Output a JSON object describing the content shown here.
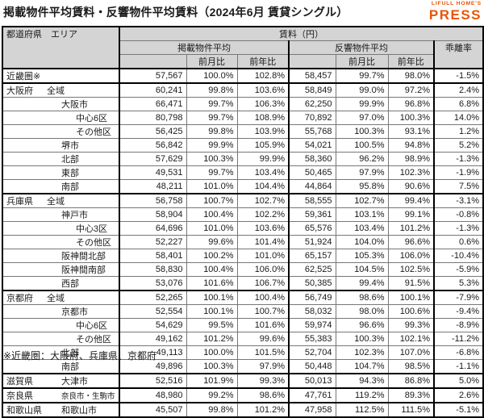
{
  "title": "掲載物件平均賃料・反響物件平均賃料（2024年6月 賃貸シングル）",
  "logo": {
    "top_text": "LIFULL HOME'S",
    "main_text": "PRESS",
    "color": "#E85504"
  },
  "header": {
    "col_prefecture_area": "都道府県　エリア",
    "rent_group": "賃料（円）",
    "listed_group": "掲載物件平均",
    "inquiry_group": "反響物件平均",
    "divergence": "乖離率",
    "mom": "前月比",
    "yoy": "前年比"
  },
  "table": {
    "rows": [
      {
        "pref": "近畿圏※",
        "area": "",
        "indent": 1,
        "section": true,
        "values": [
          "57,567",
          "100.0%",
          "102.8%",
          "58,457",
          "99.7%",
          "98.0%",
          "-1.5%"
        ]
      },
      {
        "pref": "大阪府",
        "area": "全域",
        "indent": 1,
        "section": true,
        "values": [
          "60,241",
          "99.8%",
          "103.6%",
          "58,849",
          "99.0%",
          "97.2%",
          "2.4%"
        ]
      },
      {
        "pref": "",
        "area": "大阪市",
        "indent": 2,
        "section": false,
        "values": [
          "66,471",
          "99.7%",
          "106.3%",
          "62,250",
          "99.9%",
          "96.8%",
          "6.8%"
        ]
      },
      {
        "pref": "",
        "area": "中心6区",
        "indent": 3,
        "section": false,
        "values": [
          "80,798",
          "99.7%",
          "108.9%",
          "70,892",
          "97.0%",
          "100.3%",
          "14.0%"
        ]
      },
      {
        "pref": "",
        "area": "その他区",
        "indent": 3,
        "section": false,
        "values": [
          "56,425",
          "99.8%",
          "103.9%",
          "55,768",
          "100.3%",
          "93.1%",
          "1.2%"
        ]
      },
      {
        "pref": "",
        "area": "堺市",
        "indent": 2,
        "section": false,
        "values": [
          "56,842",
          "99.9%",
          "105.9%",
          "54,021",
          "100.5%",
          "94.8%",
          "5.2%"
        ]
      },
      {
        "pref": "",
        "area": "北部",
        "indent": 2,
        "section": false,
        "values": [
          "57,629",
          "100.3%",
          "99.9%",
          "58,360",
          "96.2%",
          "98.9%",
          "-1.3%"
        ]
      },
      {
        "pref": "",
        "area": "東部",
        "indent": 2,
        "section": false,
        "values": [
          "49,531",
          "99.7%",
          "103.4%",
          "50,465",
          "97.9%",
          "102.3%",
          "-1.9%"
        ]
      },
      {
        "pref": "",
        "area": "南部",
        "indent": 2,
        "section": false,
        "values": [
          "48,211",
          "101.0%",
          "104.4%",
          "44,864",
          "95.8%",
          "90.6%",
          "7.5%"
        ]
      },
      {
        "pref": "兵庫県",
        "area": "全域",
        "indent": 1,
        "section": true,
        "values": [
          "56,758",
          "100.7%",
          "102.7%",
          "58,555",
          "102.7%",
          "99.4%",
          "-3.1%"
        ]
      },
      {
        "pref": "",
        "area": "神戸市",
        "indent": 2,
        "section": false,
        "values": [
          "58,904",
          "100.4%",
          "102.2%",
          "59,361",
          "103.1%",
          "99.1%",
          "-0.8%"
        ]
      },
      {
        "pref": "",
        "area": "中心3区",
        "indent": 3,
        "section": false,
        "values": [
          "64,696",
          "101.0%",
          "103.6%",
          "65,576",
          "103.4%",
          "101.2%",
          "-1.3%"
        ]
      },
      {
        "pref": "",
        "area": "その他区",
        "indent": 3,
        "section": false,
        "values": [
          "52,227",
          "99.6%",
          "101.4%",
          "51,924",
          "104.0%",
          "96.6%",
          "0.6%"
        ]
      },
      {
        "pref": "",
        "area": "阪神間北部",
        "indent": 2,
        "section": false,
        "values": [
          "58,401",
          "100.2%",
          "101.0%",
          "65,157",
          "105.3%",
          "106.0%",
          "-10.4%"
        ]
      },
      {
        "pref": "",
        "area": "阪神間南部",
        "indent": 2,
        "section": false,
        "values": [
          "58,830",
          "100.4%",
          "106.0%",
          "62,525",
          "104.5%",
          "102.5%",
          "-5.9%"
        ]
      },
      {
        "pref": "",
        "area": "西部",
        "indent": 2,
        "section": false,
        "values": [
          "53,076",
          "101.6%",
          "106.7%",
          "50,385",
          "99.4%",
          "91.5%",
          "5.3%"
        ]
      },
      {
        "pref": "京都府",
        "area": "全域",
        "indent": 1,
        "section": true,
        "values": [
          "52,265",
          "100.1%",
          "100.4%",
          "56,749",
          "98.6%",
          "100.1%",
          "-7.9%"
        ]
      },
      {
        "pref": "",
        "area": "京都市",
        "indent": 2,
        "section": false,
        "values": [
          "52,554",
          "100.1%",
          "100.7%",
          "58,032",
          "98.0%",
          "100.6%",
          "-9.4%"
        ]
      },
      {
        "pref": "",
        "area": "中心6区",
        "indent": 3,
        "section": false,
        "values": [
          "54,629",
          "99.5%",
          "101.6%",
          "59,974",
          "96.6%",
          "99.3%",
          "-8.9%"
        ]
      },
      {
        "pref": "",
        "area": "その他区",
        "indent": 3,
        "section": false,
        "values": [
          "49,162",
          "101.2%",
          "99.6%",
          "55,383",
          "100.3%",
          "102.1%",
          "-11.2%"
        ]
      },
      {
        "pref": "",
        "area": "北部",
        "indent": 2,
        "section": false,
        "values": [
          "49,113",
          "100.0%",
          "101.5%",
          "52,704",
          "102.3%",
          "107.0%",
          "-6.8%"
        ]
      },
      {
        "pref": "",
        "area": "南部",
        "indent": 2,
        "section": false,
        "values": [
          "49,896",
          "100.3%",
          "97.9%",
          "50,448",
          "104.7%",
          "98.5%",
          "-1.1%"
        ]
      },
      {
        "pref": "滋賀県",
        "area": "大津市",
        "indent": 2,
        "section": true,
        "values": [
          "52,516",
          "101.9%",
          "99.3%",
          "50,013",
          "94.3%",
          "86.8%",
          "5.0%"
        ]
      },
      {
        "pref": "奈良県",
        "area": "奈良市・生駒市",
        "indent": 2,
        "small": true,
        "section": true,
        "values": [
          "48,980",
          "99.2%",
          "98.6%",
          "47,761",
          "119.2%",
          "89.3%",
          "2.6%"
        ]
      },
      {
        "pref": "和歌山県",
        "area": "和歌山市",
        "indent": 2,
        "section": true,
        "values": [
          "45,507",
          "99.8%",
          "101.2%",
          "47,958",
          "112.5%",
          "111.5%",
          "-5.1%"
        ]
      }
    ]
  },
  "footnote": "※近畿圏：大阪府、兵庫県、京都府"
}
